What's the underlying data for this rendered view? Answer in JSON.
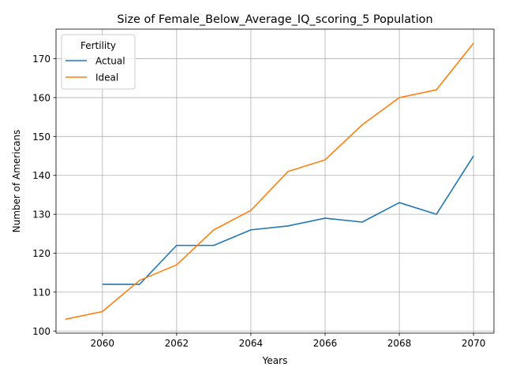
{
  "chart_data": {
    "type": "line",
    "title": "Size of Female_Below_Average_IQ_scoring_5 Population",
    "xlabel": "Years",
    "ylabel": "Number of Americans",
    "xlim": [
      2058.75,
      2070.55
    ],
    "ylim": [
      99.45,
      177.6
    ],
    "xticks": [
      2060,
      2062,
      2064,
      2066,
      2068,
      2070
    ],
    "yticks": [
      100,
      110,
      120,
      130,
      140,
      150,
      160,
      170
    ],
    "grid": true,
    "legend": {
      "title": "Fertility",
      "placement": "top-left"
    },
    "series": [
      {
        "name": "Actual",
        "color": "#1f77b4",
        "x": [
          2060,
          2061,
          2062,
          2063,
          2064,
          2065,
          2066,
          2067,
          2068,
          2069,
          2070
        ],
        "y": [
          112,
          112,
          122,
          122,
          126,
          127,
          129,
          128,
          133,
          130,
          145
        ]
      },
      {
        "name": "Ideal",
        "color": "#ff7f0e",
        "x": [
          2059,
          2060,
          2061,
          2062,
          2063,
          2064,
          2065,
          2066,
          2067,
          2068,
          2069,
          2070
        ],
        "y": [
          103,
          105,
          113,
          117,
          126,
          131,
          141,
          144,
          153,
          160,
          162,
          174
        ]
      }
    ]
  }
}
